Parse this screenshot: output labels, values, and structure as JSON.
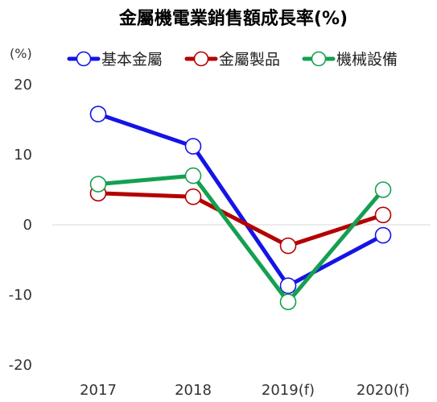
{
  "chart_data": {
    "type": "line",
    "title": "金屬機電業銷售額成長率(%)",
    "ylabel": "(%)",
    "xlabel": "",
    "categories": [
      "2017",
      "2018",
      "2019(f)",
      "2020(f)"
    ],
    "ylim": [
      -20,
      20
    ],
    "yticks": [
      20,
      10,
      0,
      -10,
      -20
    ],
    "grid": false,
    "zero_line": true,
    "legend_position": "top",
    "series": [
      {
        "name": "基本金屬",
        "values": [
          15.8,
          11.2,
          -8.7,
          -1.5
        ],
        "color": "#1414e6"
      },
      {
        "name": "金屬製品",
        "values": [
          4.5,
          4.0,
          -3.0,
          1.4
        ],
        "color": "#b40000"
      },
      {
        "name": "機械設備",
        "values": [
          5.8,
          7.0,
          -11.0,
          5.0
        ],
        "color": "#14a050"
      }
    ]
  }
}
